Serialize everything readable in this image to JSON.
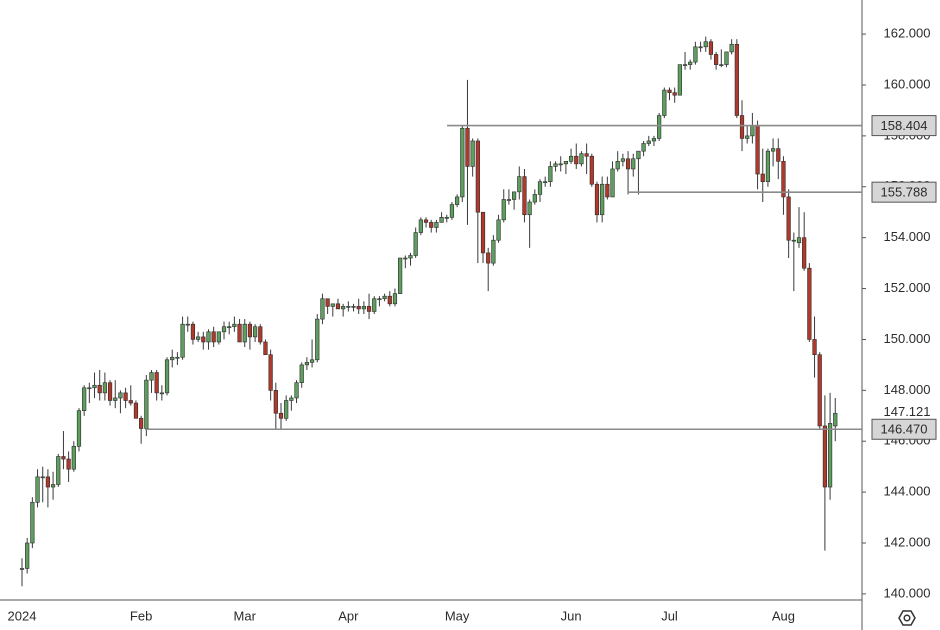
{
  "chart_data": {
    "type": "candlestick",
    "categories": [
      "2024",
      null,
      null,
      null,
      null,
      null,
      null,
      null,
      null,
      null,
      null,
      null,
      null,
      null,
      null,
      null,
      null,
      null,
      null,
      null,
      null,
      null,
      null,
      "Feb",
      null,
      null,
      null,
      null,
      null,
      null,
      null,
      null,
      null,
      null,
      null,
      null,
      null,
      null,
      null,
      null,
      null,
      null,
      null,
      "Mar",
      null,
      null,
      null,
      null,
      null,
      null,
      null,
      null,
      null,
      null,
      null,
      null,
      null,
      null,
      null,
      null,
      null,
      null,
      null,
      "Apr",
      null,
      null,
      null,
      null,
      null,
      null,
      null,
      null,
      null,
      null,
      null,
      null,
      null,
      null,
      null,
      null,
      null,
      null,
      null,
      null,
      "May",
      null,
      null,
      null,
      null,
      null,
      null,
      null,
      null,
      null,
      null,
      null,
      null,
      null,
      null,
      null,
      null,
      null,
      null,
      null,
      null,
      null,
      "Jun",
      null,
      null,
      null,
      null,
      null,
      null,
      null,
      null,
      null,
      null,
      null,
      null,
      null,
      null,
      null,
      null,
      null,
      null,
      "Jul",
      null,
      null,
      null,
      null,
      null,
      null,
      null,
      null,
      null,
      null,
      null,
      null,
      null,
      null,
      null,
      null,
      null,
      null,
      null,
      null,
      null,
      "Aug",
      null,
      null,
      null,
      null
    ],
    "ohlc": [
      [
        141.0,
        141.4,
        140.3,
        141.0
      ],
      [
        141.0,
        142.2,
        140.8,
        142.0
      ],
      [
        142.0,
        143.8,
        141.8,
        143.6
      ],
      [
        143.6,
        144.9,
        143.4,
        144.6
      ],
      [
        144.6,
        145.0,
        143.6,
        144.6
      ],
      [
        144.6,
        144.9,
        143.4,
        144.2
      ],
      [
        144.2,
        144.8,
        143.7,
        144.3
      ],
      [
        144.3,
        145.5,
        144.2,
        145.4
      ],
      [
        145.4,
        146.4,
        144.9,
        145.3
      ],
      [
        145.3,
        145.6,
        144.4,
        144.9
      ],
      [
        144.9,
        146.0,
        144.8,
        145.8
      ],
      [
        145.8,
        147.3,
        145.6,
        147.2
      ],
      [
        147.2,
        148.2,
        147.0,
        148.1
      ],
      [
        148.1,
        148.3,
        147.5,
        148.1
      ],
      [
        148.1,
        148.7,
        147.7,
        148.2
      ],
      [
        148.2,
        148.8,
        147.6,
        147.9
      ],
      [
        147.9,
        148.7,
        147.6,
        148.3
      ],
      [
        148.3,
        148.4,
        147.4,
        147.6
      ],
      [
        147.6,
        148.4,
        147.3,
        147.7
      ],
      [
        147.7,
        148.0,
        147.1,
        147.9
      ],
      [
        147.9,
        148.1,
        147.3,
        147.6
      ],
      [
        147.6,
        148.2,
        147.4,
        147.5
      ],
      [
        147.5,
        147.6,
        146.9,
        146.9
      ],
      [
        146.9,
        147.0,
        145.9,
        146.5
      ],
      [
        146.5,
        148.6,
        146.2,
        148.4
      ],
      [
        148.4,
        148.8,
        147.9,
        148.7
      ],
      [
        148.7,
        148.8,
        147.6,
        147.9
      ],
      [
        147.9,
        148.2,
        147.6,
        147.9
      ],
      [
        147.9,
        149.3,
        147.8,
        149.2
      ],
      [
        149.2,
        149.6,
        148.9,
        149.3
      ],
      [
        149.3,
        149.5,
        149.0,
        149.3
      ],
      [
        149.3,
        150.9,
        149.2,
        150.6
      ],
      [
        150.6,
        150.9,
        150.3,
        150.6
      ],
      [
        150.6,
        150.7,
        149.8,
        150.0
      ],
      [
        150.0,
        150.3,
        149.9,
        150.1
      ],
      [
        150.1,
        150.3,
        149.6,
        149.9
      ],
      [
        149.9,
        150.4,
        149.6,
        150.3
      ],
      [
        150.3,
        150.5,
        149.7,
        149.9
      ],
      [
        149.9,
        150.3,
        149.8,
        150.3
      ],
      [
        150.3,
        150.7,
        150.0,
        150.5
      ],
      [
        150.5,
        150.7,
        150.2,
        150.5
      ],
      [
        150.5,
        150.9,
        150.3,
        150.6
      ],
      [
        150.6,
        150.8,
        149.9,
        149.9
      ],
      [
        149.9,
        150.8,
        149.7,
        150.6
      ],
      [
        150.6,
        150.7,
        149.6,
        150.1
      ],
      [
        150.1,
        150.6,
        149.9,
        150.5
      ],
      [
        150.5,
        150.6,
        149.8,
        149.9
      ],
      [
        149.9,
        150.0,
        149.4,
        149.4
      ],
      [
        149.4,
        149.6,
        147.6,
        148.0
      ],
      [
        148.0,
        148.3,
        146.5,
        147.1
      ],
      [
        147.1,
        147.5,
        146.5,
        146.9
      ],
      [
        146.9,
        147.8,
        146.8,
        147.6
      ],
      [
        147.6,
        147.8,
        147.2,
        147.7
      ],
      [
        147.7,
        148.4,
        147.5,
        148.3
      ],
      [
        148.3,
        149.1,
        148.1,
        149.0
      ],
      [
        149.0,
        149.3,
        148.8,
        149.1
      ],
      [
        149.1,
        150.0,
        148.9,
        149.2
      ],
      [
        149.2,
        151.0,
        149.1,
        150.8
      ],
      [
        150.8,
        151.8,
        150.6,
        151.6
      ],
      [
        151.6,
        151.6,
        151.0,
        151.3
      ],
      [
        151.3,
        151.4,
        150.9,
        151.4
      ],
      [
        151.4,
        151.6,
        151.2,
        151.2
      ],
      [
        151.2,
        151.4,
        150.9,
        151.3
      ],
      [
        151.3,
        151.5,
        151.1,
        151.3
      ],
      [
        151.3,
        151.4,
        151.1,
        151.3
      ],
      [
        151.3,
        151.6,
        151.0,
        151.2
      ],
      [
        151.2,
        151.5,
        151.0,
        151.3
      ],
      [
        151.3,
        151.8,
        150.8,
        151.1
      ],
      [
        151.1,
        151.7,
        151.0,
        151.6
      ],
      [
        151.6,
        151.7,
        151.3,
        151.6
      ],
      [
        151.6,
        151.8,
        151.5,
        151.7
      ],
      [
        151.7,
        151.9,
        151.3,
        151.4
      ],
      [
        151.4,
        152.0,
        151.3,
        151.8
      ],
      [
        151.8,
        153.2,
        151.8,
        153.2
      ],
      [
        153.2,
        153.3,
        152.8,
        153.2
      ],
      [
        153.2,
        153.4,
        152.9,
        153.3
      ],
      [
        153.3,
        154.4,
        153.2,
        154.2
      ],
      [
        154.2,
        154.8,
        154.1,
        154.7
      ],
      [
        154.7,
        154.8,
        154.4,
        154.6
      ],
      [
        154.6,
        154.7,
        154.2,
        154.4
      ],
      [
        154.4,
        154.7,
        154.2,
        154.6
      ],
      [
        154.6,
        155.0,
        154.6,
        154.8
      ],
      [
        154.8,
        154.9,
        154.6,
        154.8
      ],
      [
        154.8,
        155.4,
        154.7,
        155.3
      ],
      [
        155.3,
        155.7,
        155.2,
        155.6
      ],
      [
        155.6,
        158.4,
        155.4,
        158.3
      ],
      [
        158.3,
        160.2,
        154.5,
        156.8
      ],
      [
        156.8,
        157.9,
        156.4,
        157.8
      ],
      [
        157.8,
        157.9,
        153.0,
        155.0
      ],
      [
        155.0,
        155.0,
        153.0,
        153.4
      ],
      [
        153.4,
        153.6,
        151.9,
        153.0
      ],
      [
        153.0,
        154.1,
        152.9,
        153.9
      ],
      [
        153.9,
        154.9,
        153.8,
        154.7
      ],
      [
        154.7,
        155.9,
        154.6,
        155.5
      ],
      [
        155.5,
        155.9,
        155.3,
        155.5
      ],
      [
        155.5,
        155.8,
        155.1,
        155.8
      ],
      [
        155.8,
        156.8,
        155.5,
        156.4
      ],
      [
        156.4,
        156.7,
        154.6,
        154.9
      ],
      [
        154.9,
        155.5,
        153.6,
        155.4
      ],
      [
        155.4,
        155.9,
        155.3,
        155.7
      ],
      [
        155.7,
        156.3,
        155.4,
        156.2
      ],
      [
        156.2,
        156.4,
        156.0,
        156.2
      ],
      [
        156.2,
        157.0,
        156.0,
        156.8
      ],
      [
        156.8,
        157.0,
        156.6,
        156.9
      ],
      [
        156.9,
        157.2,
        156.6,
        156.9
      ],
      [
        156.9,
        157.0,
        156.5,
        157.0
      ],
      [
        157.0,
        157.5,
        156.9,
        157.2
      ],
      [
        157.2,
        157.7,
        156.7,
        156.9
      ],
      [
        156.9,
        157.4,
        156.8,
        157.3
      ],
      [
        157.3,
        157.7,
        156.5,
        157.2
      ],
      [
        157.2,
        157.3,
        156.0,
        156.1
      ],
      [
        156.1,
        156.2,
        154.6,
        154.9
      ],
      [
        154.9,
        156.4,
        154.6,
        156.1
      ],
      [
        156.1,
        156.4,
        155.5,
        155.6
      ],
      [
        155.6,
        157.0,
        155.6,
        156.7
      ],
      [
        156.7,
        157.4,
        156.6,
        157.0
      ],
      [
        157.0,
        157.3,
        156.8,
        157.1
      ],
      [
        157.1,
        157.4,
        155.7,
        156.7
      ],
      [
        156.7,
        157.3,
        156.4,
        157.1
      ],
      [
        157.1,
        157.4,
        155.7,
        157.4
      ],
      [
        157.4,
        157.8,
        157.2,
        157.7
      ],
      [
        157.7,
        158.0,
        157.6,
        157.8
      ],
      [
        157.8,
        158.0,
        157.6,
        157.9
      ],
      [
        157.9,
        158.9,
        157.8,
        158.8
      ],
      [
        158.8,
        159.9,
        158.7,
        159.8
      ],
      [
        159.8,
        159.9,
        159.4,
        159.7
      ],
      [
        159.7,
        159.9,
        159.3,
        159.6
      ],
      [
        159.6,
        160.8,
        159.6,
        160.8
      ],
      [
        160.8,
        161.3,
        160.6,
        160.8
      ],
      [
        160.8,
        161.0,
        160.6,
        160.9
      ],
      [
        160.9,
        161.7,
        160.8,
        161.5
      ],
      [
        161.5,
        161.7,
        161.3,
        161.5
      ],
      [
        161.5,
        161.9,
        161.3,
        161.7
      ],
      [
        161.7,
        161.8,
        161.0,
        161.2
      ],
      [
        161.2,
        161.3,
        160.6,
        160.8
      ],
      [
        160.8,
        161.4,
        160.7,
        160.8
      ],
      [
        160.8,
        161.3,
        160.7,
        161.3
      ],
      [
        161.3,
        161.8,
        161.2,
        161.6
      ],
      [
        161.6,
        161.8,
        158.7,
        158.8
      ],
      [
        158.8,
        159.4,
        157.4,
        157.9
      ],
      [
        157.9,
        158.4,
        157.7,
        158.0
      ],
      [
        158.0,
        158.9,
        157.7,
        158.4
      ],
      [
        158.4,
        158.6,
        155.9,
        156.5
      ],
      [
        156.5,
        157.5,
        155.4,
        156.2
      ],
      [
        156.2,
        157.5,
        156.0,
        157.4
      ],
      [
        157.4,
        157.9,
        156.8,
        157.5
      ],
      [
        157.5,
        157.9,
        156.3,
        157.0
      ],
      [
        157.0,
        157.2,
        154.9,
        155.6
      ],
      [
        155.6,
        155.9,
        153.2,
        153.9
      ],
      [
        153.9,
        154.2,
        151.9,
        153.9
      ],
      [
        153.8,
        155.2,
        153.6,
        154.0
      ],
      [
        154.0,
        155.0,
        152.7,
        152.8
      ],
      [
        152.8,
        153.0,
        149.9,
        150.0
      ],
      [
        150.0,
        150.9,
        148.5,
        149.4
      ],
      [
        149.4,
        149.5,
        146.5,
        146.6
      ],
      [
        146.6,
        147.8,
        141.7,
        144.2
      ],
      [
        144.2,
        147.9,
        143.7,
        146.7
      ],
      [
        146.6,
        147.7,
        146.0,
        147.1
      ]
    ],
    "up_color": "#5e9e5e",
    "down_color": "#b0392c",
    "ylim": [
      139.76,
      163.34
    ],
    "yticks": [
      {
        "value": 140,
        "label": "140.000"
      },
      {
        "value": 142,
        "label": "142.000"
      },
      {
        "value": 144,
        "label": "144.000"
      },
      {
        "value": 146,
        "label": "146.000"
      },
      {
        "value": 148,
        "label": "148.000"
      },
      {
        "value": 150,
        "label": "150.000"
      },
      {
        "value": 152,
        "label": "152.000"
      },
      {
        "value": 154,
        "label": "154.000"
      },
      {
        "value": 156,
        "label": "156.000"
      },
      {
        "value": 158,
        "label": "158.000"
      },
      {
        "value": 160,
        "label": "160.000"
      },
      {
        "value": 162,
        "label": "162.000"
      }
    ],
    "grid": false,
    "horizontal_lines": [
      158.404,
      155.788,
      {
        "value": 146.47,
        "label": "146.470"
      }
    ],
    "last_price": 147.121
  }
}
